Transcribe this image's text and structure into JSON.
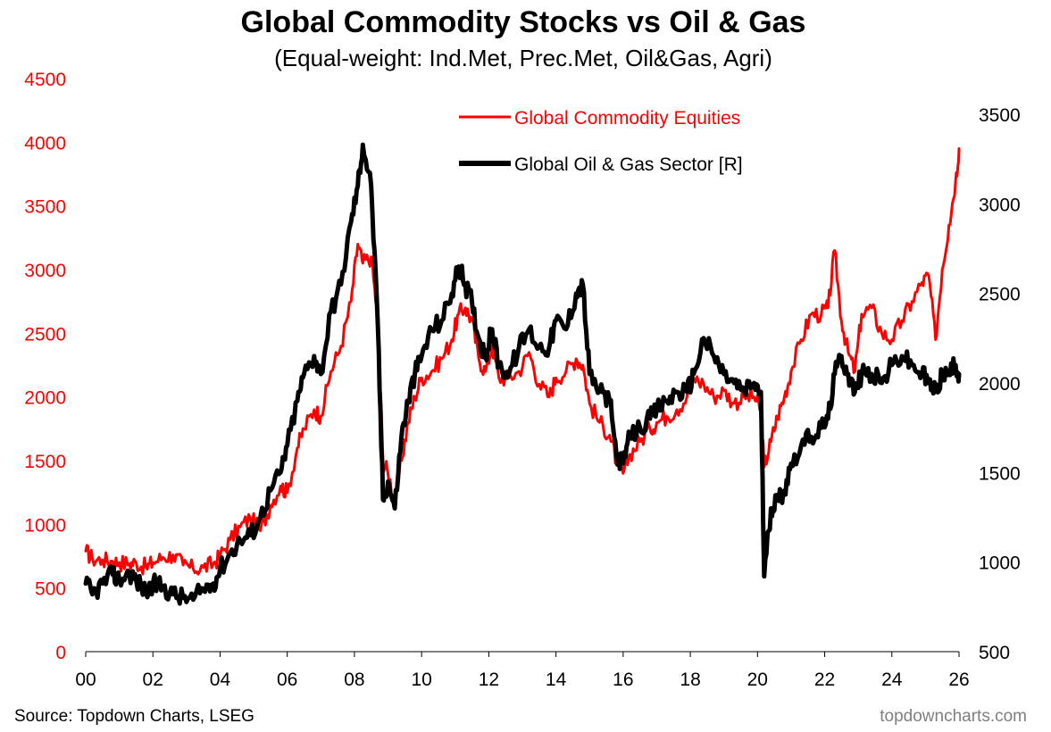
{
  "chart_data": {
    "type": "line",
    "title": "Global Commodity Stocks vs Oil & Gas",
    "subtitle": "(Equal-weight: Ind.Met, Prec.Met, Oil&Gas, Agri)",
    "x_range": [
      2000,
      2026
    ],
    "x_ticks": [
      2000,
      2002,
      2004,
      2006,
      2008,
      2010,
      2012,
      2014,
      2016,
      2018,
      2020,
      2022,
      2024,
      2026
    ],
    "x_tick_labels": [
      "00",
      "02",
      "04",
      "06",
      "08",
      "10",
      "12",
      "14",
      "16",
      "18",
      "20",
      "22",
      "24",
      "26"
    ],
    "left_axis": {
      "range": [
        0,
        4500
      ],
      "ticks": [
        0,
        500,
        1000,
        1500,
        2000,
        2500,
        3000,
        3500,
        4000,
        4500
      ],
      "labels": [
        "0",
        "500",
        "1000",
        "1500",
        "2000",
        "2500",
        "3000",
        "3500",
        "4000",
        "4500"
      ]
    },
    "right_axis": {
      "range": [
        500,
        3500
      ],
      "ticks": [
        500,
        1000,
        1500,
        2000,
        2500,
        3000,
        3500
      ],
      "labels": [
        "500",
        "1000",
        "1500",
        "2000",
        "2500",
        "3000",
        "3500"
      ]
    },
    "legend": {
      "placement": "top-center"
    },
    "series": [
      {
        "name": "Global Commodity Equities",
        "axis": "left",
        "color": "#ff0000",
        "x": [
          2000.0,
          2000.2,
          2000.5,
          2000.8,
          2001.0,
          2001.3,
          2001.5,
          2001.8,
          2002.0,
          2002.3,
          2002.6,
          2002.9,
          2003.2,
          2003.5,
          2003.8,
          2004.0,
          2004.3,
          2004.6,
          2004.9,
          2005.2,
          2005.5,
          2005.8,
          2006.0,
          2006.3,
          2006.5,
          2006.8,
          2007.0,
          2007.3,
          2007.6,
          2007.9,
          2008.1,
          2008.25,
          2008.5,
          2008.7,
          2008.85,
          2009.0,
          2009.2,
          2009.4,
          2009.6,
          2009.8,
          2010.0,
          2010.3,
          2010.6,
          2010.9,
          2011.1,
          2011.3,
          2011.5,
          2011.7,
          2011.9,
          2012.1,
          2012.3,
          2012.6,
          2012.9,
          2013.2,
          2013.5,
          2013.8,
          2014.0,
          2014.3,
          2014.6,
          2014.8,
          2015.0,
          2015.3,
          2015.6,
          2015.8,
          2016.0,
          2016.2,
          2016.5,
          2016.8,
          2017.0,
          2017.3,
          2017.6,
          2017.9,
          2018.1,
          2018.4,
          2018.7,
          2019.0,
          2019.3,
          2019.6,
          2019.9,
          2020.1,
          2020.2,
          2020.4,
          2020.6,
          2020.8,
          2021.0,
          2021.3,
          2021.6,
          2021.9,
          2022.1,
          2022.3,
          2022.5,
          2022.7,
          2022.9,
          2023.1,
          2023.4,
          2023.7,
          2024.0,
          2024.3,
          2024.6,
          2024.9,
          2025.1,
          2025.3,
          2025.5,
          2025.7,
          2025.9,
          2026.0
        ],
        "y": [
          790,
          730,
          720,
          710,
          700,
          690,
          700,
          660,
          700,
          740,
          760,
          680,
          650,
          660,
          690,
          750,
          880,
          980,
          1050,
          950,
          1150,
          1300,
          1250,
          1600,
          1750,
          1900,
          1850,
          2200,
          2400,
          2750,
          3200,
          3050,
          3100,
          2600,
          1500,
          1400,
          1200,
          1500,
          1800,
          2000,
          2150,
          2200,
          2300,
          2450,
          2650,
          2700,
          2600,
          2300,
          2200,
          2400,
          2150,
          2150,
          2200,
          2350,
          2100,
          2000,
          2150,
          2200,
          2300,
          2250,
          1950,
          1800,
          1700,
          1500,
          1400,
          1550,
          1650,
          1750,
          1800,
          1850,
          1900,
          2000,
          2150,
          2100,
          2000,
          2050,
          1950,
          2000,
          2000,
          1900,
          1450,
          1650,
          1850,
          2000,
          2200,
          2450,
          2650,
          2650,
          2700,
          3150,
          2600,
          2350,
          2200,
          2650,
          2700,
          2500,
          2450,
          2600,
          2750,
          2900,
          2950,
          2450,
          3000,
          3350,
          3700,
          3950
        ],
        "end_value": 3950
      },
      {
        "name": "Global Oil & Gas Sector [R]",
        "axis": "right",
        "color": "#000000",
        "x": [
          2000.0,
          2000.2,
          2000.5,
          2000.8,
          2001.0,
          2001.3,
          2001.5,
          2001.8,
          2002.0,
          2002.3,
          2002.6,
          2002.9,
          2003.2,
          2003.5,
          2003.8,
          2004.0,
          2004.3,
          2004.6,
          2004.9,
          2005.2,
          2005.5,
          2005.8,
          2006.0,
          2006.3,
          2006.5,
          2006.8,
          2007.0,
          2007.3,
          2007.6,
          2007.9,
          2008.1,
          2008.25,
          2008.5,
          2008.7,
          2008.85,
          2009.0,
          2009.2,
          2009.4,
          2009.6,
          2009.8,
          2010.0,
          2010.3,
          2010.6,
          2010.9,
          2011.1,
          2011.3,
          2011.5,
          2011.7,
          2011.9,
          2012.1,
          2012.3,
          2012.6,
          2012.9,
          2013.2,
          2013.5,
          2013.8,
          2014.0,
          2014.3,
          2014.6,
          2014.8,
          2015.0,
          2015.3,
          2015.6,
          2015.8,
          2016.0,
          2016.2,
          2016.5,
          2016.8,
          2017.0,
          2017.3,
          2017.6,
          2017.9,
          2018.1,
          2018.4,
          2018.7,
          2019.0,
          2019.3,
          2019.6,
          2019.9,
          2020.1,
          2020.2,
          2020.4,
          2020.6,
          2020.8,
          2021.0,
          2021.3,
          2021.6,
          2021.9,
          2022.1,
          2022.3,
          2022.5,
          2022.7,
          2022.9,
          2023.1,
          2023.4,
          2023.7,
          2024.0,
          2024.3,
          2024.6,
          2024.9,
          2025.1,
          2025.3,
          2025.5,
          2025.7,
          2025.9,
          2026.0
        ],
        "y": [
          880,
          820,
          880,
          930,
          900,
          940,
          900,
          830,
          880,
          860,
          820,
          800,
          790,
          850,
          880,
          960,
          1050,
          1120,
          1150,
          1250,
          1400,
          1500,
          1650,
          1900,
          2050,
          2150,
          2050,
          2400,
          2550,
          2900,
          3100,
          3330,
          3100,
          2300,
          1350,
          1450,
          1300,
          1700,
          1900,
          2050,
          2150,
          2300,
          2350,
          2500,
          2650,
          2550,
          2450,
          2250,
          2150,
          2300,
          2100,
          2050,
          2200,
          2300,
          2200,
          2200,
          2350,
          2300,
          2500,
          2550,
          2050,
          1950,
          1900,
          1600,
          1550,
          1700,
          1750,
          1800,
          1850,
          1900,
          1950,
          1950,
          2050,
          2250,
          2150,
          2050,
          2000,
          1950,
          2000,
          1950,
          920,
          1300,
          1350,
          1400,
          1550,
          1650,
          1700,
          1750,
          1800,
          2050,
          2150,
          2050,
          1950,
          2050,
          2050,
          2000,
          2100,
          2150,
          2100,
          2050,
          2000,
          1950,
          2050,
          2050,
          2100,
          2050
        ],
        "end_value": 2050
      }
    ],
    "source": "Source: Topdown Charts, LSEG",
    "watermark": "topdowncharts.com"
  },
  "colors": {
    "red_series": "#ff0000",
    "black_series": "#000000",
    "axis": "#000000",
    "footer_gray": "#7f7f7f"
  }
}
